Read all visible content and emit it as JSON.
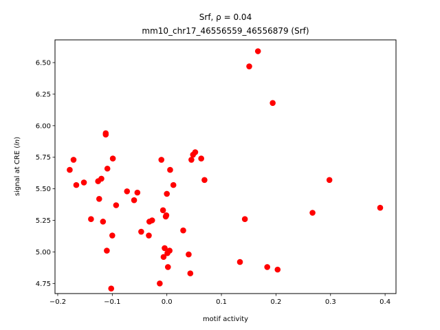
{
  "chart_data": {
    "type": "scatter",
    "title_line1": "Srf, ρ = 0.04",
    "title_line2": "mm10_chr17_46556559_46556879 (Srf)",
    "xlabel": "motif activity",
    "ylabel": "signal at CRE (ln)",
    "xlim": [
      -0.205,
      0.42
    ],
    "ylim": [
      4.67,
      6.68
    ],
    "x_ticks": [
      -0.2,
      -0.1,
      0.0,
      0.1,
      0.2,
      0.3,
      0.4
    ],
    "x_tick_labels": [
      "−0.2",
      "−0.1",
      "0.0",
      "0.1",
      "0.2",
      "0.3",
      "0.4"
    ],
    "y_ticks": [
      4.75,
      5.0,
      5.25,
      5.5,
      5.75,
      6.0,
      6.25,
      6.5
    ],
    "y_tick_labels": [
      "4.75",
      "5.00",
      "5.25",
      "5.50",
      "5.75",
      "6.00",
      "6.25",
      "6.50"
    ],
    "grid": false,
    "marker_color": "#ff0000",
    "series": [
      {
        "points": [
          [
            -0.178,
            5.65
          ],
          [
            -0.171,
            5.73
          ],
          [
            -0.166,
            5.53
          ],
          [
            -0.152,
            5.55
          ],
          [
            -0.139,
            5.26
          ],
          [
            -0.126,
            5.56
          ],
          [
            -0.124,
            5.42
          ],
          [
            -0.12,
            5.58
          ],
          [
            -0.117,
            5.24
          ],
          [
            -0.112,
            5.94
          ],
          [
            -0.112,
            5.93
          ],
          [
            -0.11,
            5.01
          ],
          [
            -0.109,
            5.66
          ],
          [
            -0.102,
            4.71
          ],
          [
            -0.1,
            5.13
          ],
          [
            -0.099,
            5.74
          ],
          [
            -0.093,
            5.37
          ],
          [
            -0.073,
            5.48
          ],
          [
            -0.06,
            5.41
          ],
          [
            -0.054,
            5.47
          ],
          [
            -0.047,
            5.16
          ],
          [
            -0.033,
            5.13
          ],
          [
            -0.032,
            5.24
          ],
          [
            -0.027,
            5.25
          ],
          [
            -0.013,
            4.75
          ],
          [
            -0.01,
            5.73
          ],
          [
            -0.007,
            5.33
          ],
          [
            -0.006,
            4.96
          ],
          [
            -0.004,
            5.03
          ],
          [
            -0.002,
            5.28
          ],
          [
            -0.001,
            5.29
          ],
          [
            0.0,
            5.46
          ],
          [
            0.001,
            4.99
          ],
          [
            0.002,
            4.88
          ],
          [
            0.005,
            5.01
          ],
          [
            0.006,
            5.65
          ],
          [
            0.012,
            5.53
          ],
          [
            0.03,
            5.17
          ],
          [
            0.04,
            4.98
          ],
          [
            0.043,
            4.83
          ],
          [
            0.045,
            5.73
          ],
          [
            0.048,
            5.77
          ],
          [
            0.052,
            5.79
          ],
          [
            0.063,
            5.74
          ],
          [
            0.069,
            5.57
          ],
          [
            0.134,
            4.92
          ],
          [
            0.143,
            5.26
          ],
          [
            0.151,
            6.47
          ],
          [
            0.167,
            6.59
          ],
          [
            0.184,
            4.88
          ],
          [
            0.194,
            6.18
          ],
          [
            0.203,
            4.86
          ],
          [
            0.267,
            5.31
          ],
          [
            0.298,
            5.57
          ],
          [
            0.391,
            5.35
          ]
        ]
      }
    ]
  }
}
